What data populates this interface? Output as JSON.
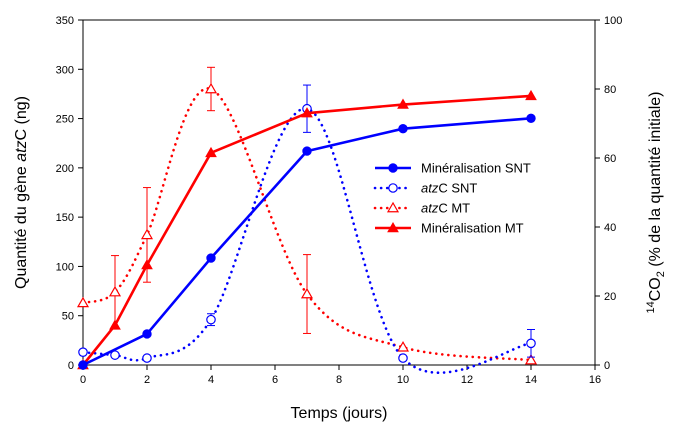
{
  "chart_data": {
    "type": "line",
    "xlabel": "Temps (jours)",
    "ylabel_left": {
      "pre": "Quantité du gène ",
      "italic": "atz",
      "post": "C (ng)"
    },
    "ylabel_right": {
      "sup": "14",
      "main": "CO",
      "sub": "2",
      "post": " (% de la quantité initiale)"
    },
    "xlim": [
      0,
      16
    ],
    "ylim_left": [
      0,
      350
    ],
    "ylim_right": [
      0,
      100
    ],
    "x_ticks": [
      "0",
      "2",
      "4",
      "6",
      "8",
      "10",
      "12",
      "14",
      "16"
    ],
    "y_ticks_left": [
      "0",
      "50",
      "100",
      "150",
      "200",
      "250",
      "300",
      "350"
    ],
    "y_ticks_right": [
      "0",
      "20",
      "40",
      "60",
      "80",
      "100"
    ],
    "legend_position": "right-center",
    "series": [
      {
        "name": "Minéralisation SNT",
        "legend": {
          "italic": "",
          "post": "Minéralisation SNT"
        },
        "axis": "right",
        "color": "#0000ff",
        "marker": "circle-filled",
        "line": "solid",
        "x": [
          0,
          2,
          4,
          7,
          10,
          14
        ],
        "y": [
          0,
          9,
          31,
          62,
          68.5,
          71.5
        ]
      },
      {
        "name": "atzC SNT",
        "legend": {
          "italic": "atz",
          "post": "C SNT"
        },
        "axis": "left",
        "color": "#0000ff",
        "marker": "circle-open",
        "line": "dotted",
        "x": [
          0,
          1,
          2,
          4,
          7,
          10,
          14
        ],
        "y": [
          13,
          10,
          7,
          46,
          260,
          7,
          22
        ],
        "err": [
          0,
          0,
          0,
          6,
          24,
          0,
          14
        ]
      },
      {
        "name": "atzC MT",
        "legend": {
          "italic": "atz",
          "post": "C MT"
        },
        "axis": "left",
        "color": "#ff0000",
        "marker": "triangle-open",
        "line": "dotted",
        "x": [
          0,
          1,
          2,
          4,
          7,
          10,
          14
        ],
        "y": [
          63,
          74,
          132,
          280,
          72,
          18,
          5
        ],
        "err": [
          0,
          37,
          48,
          22,
          40,
          0,
          0
        ]
      },
      {
        "name": "Minéralisation MT",
        "legend": {
          "italic": "",
          "post": "Minéralisation MT"
        },
        "axis": "right",
        "color": "#ff0000",
        "marker": "triangle-filled",
        "line": "solid",
        "x": [
          0,
          1,
          2,
          4,
          7,
          10,
          14
        ],
        "y": [
          0,
          11.5,
          29,
          61.5,
          73,
          75.5,
          78
        ]
      }
    ]
  }
}
